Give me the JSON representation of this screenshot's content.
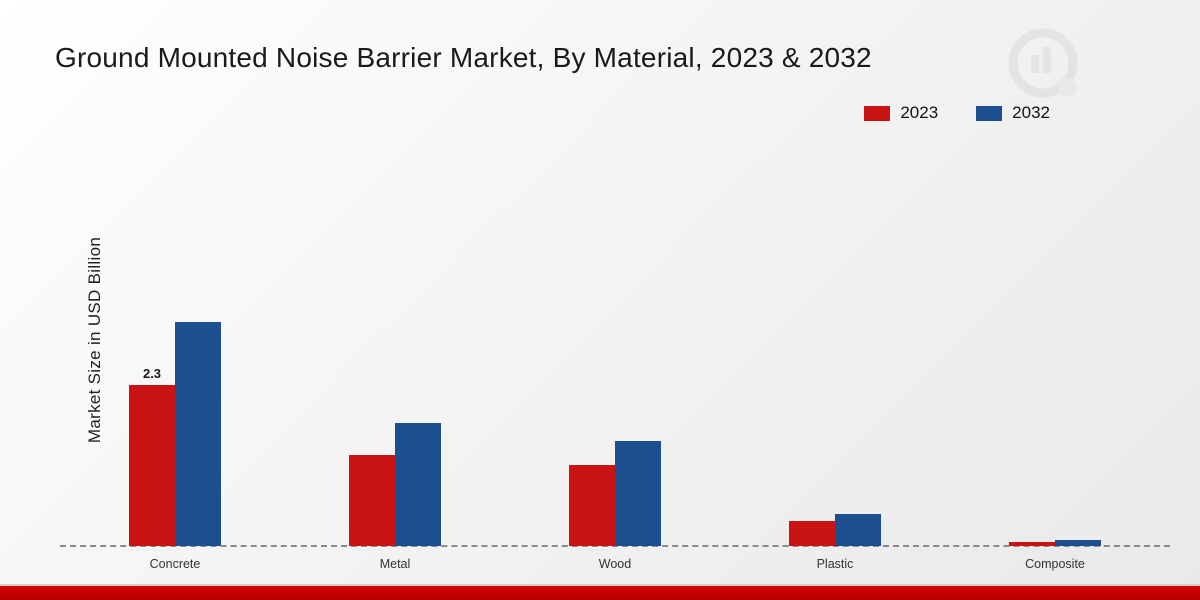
{
  "chart_data": {
    "type": "bar",
    "title": "Ground Mounted Noise Barrier Market, By Material, 2023 & 2032",
    "ylabel": "Market Size in USD Billion",
    "xlabel": "",
    "categories": [
      "Concrete",
      "Metal",
      "Wood",
      "Plastic",
      "Composite"
    ],
    "series": [
      {
        "name": "2023",
        "color": "#c81414",
        "values": [
          2.3,
          1.3,
          1.15,
          0.35,
          0.05
        ],
        "labels": [
          "2.3",
          null,
          null,
          null,
          null
        ]
      },
      {
        "name": "2032",
        "color": "#1c4f8f",
        "values": [
          3.2,
          1.75,
          1.5,
          0.45,
          0.08
        ],
        "labels": [
          null,
          null,
          null,
          null,
          null
        ]
      }
    ],
    "ylim": [
      0,
      3.5
    ],
    "grid": false,
    "legend_position": "top-right",
    "baseline_style": "dashed",
    "data_label_note": "only Concrete 2023 bar is labeled (2.3)"
  },
  "decoration": {
    "watermark_icon": "bar-chart-magnifier-logo",
    "bottom_band_color": "#c40000"
  }
}
